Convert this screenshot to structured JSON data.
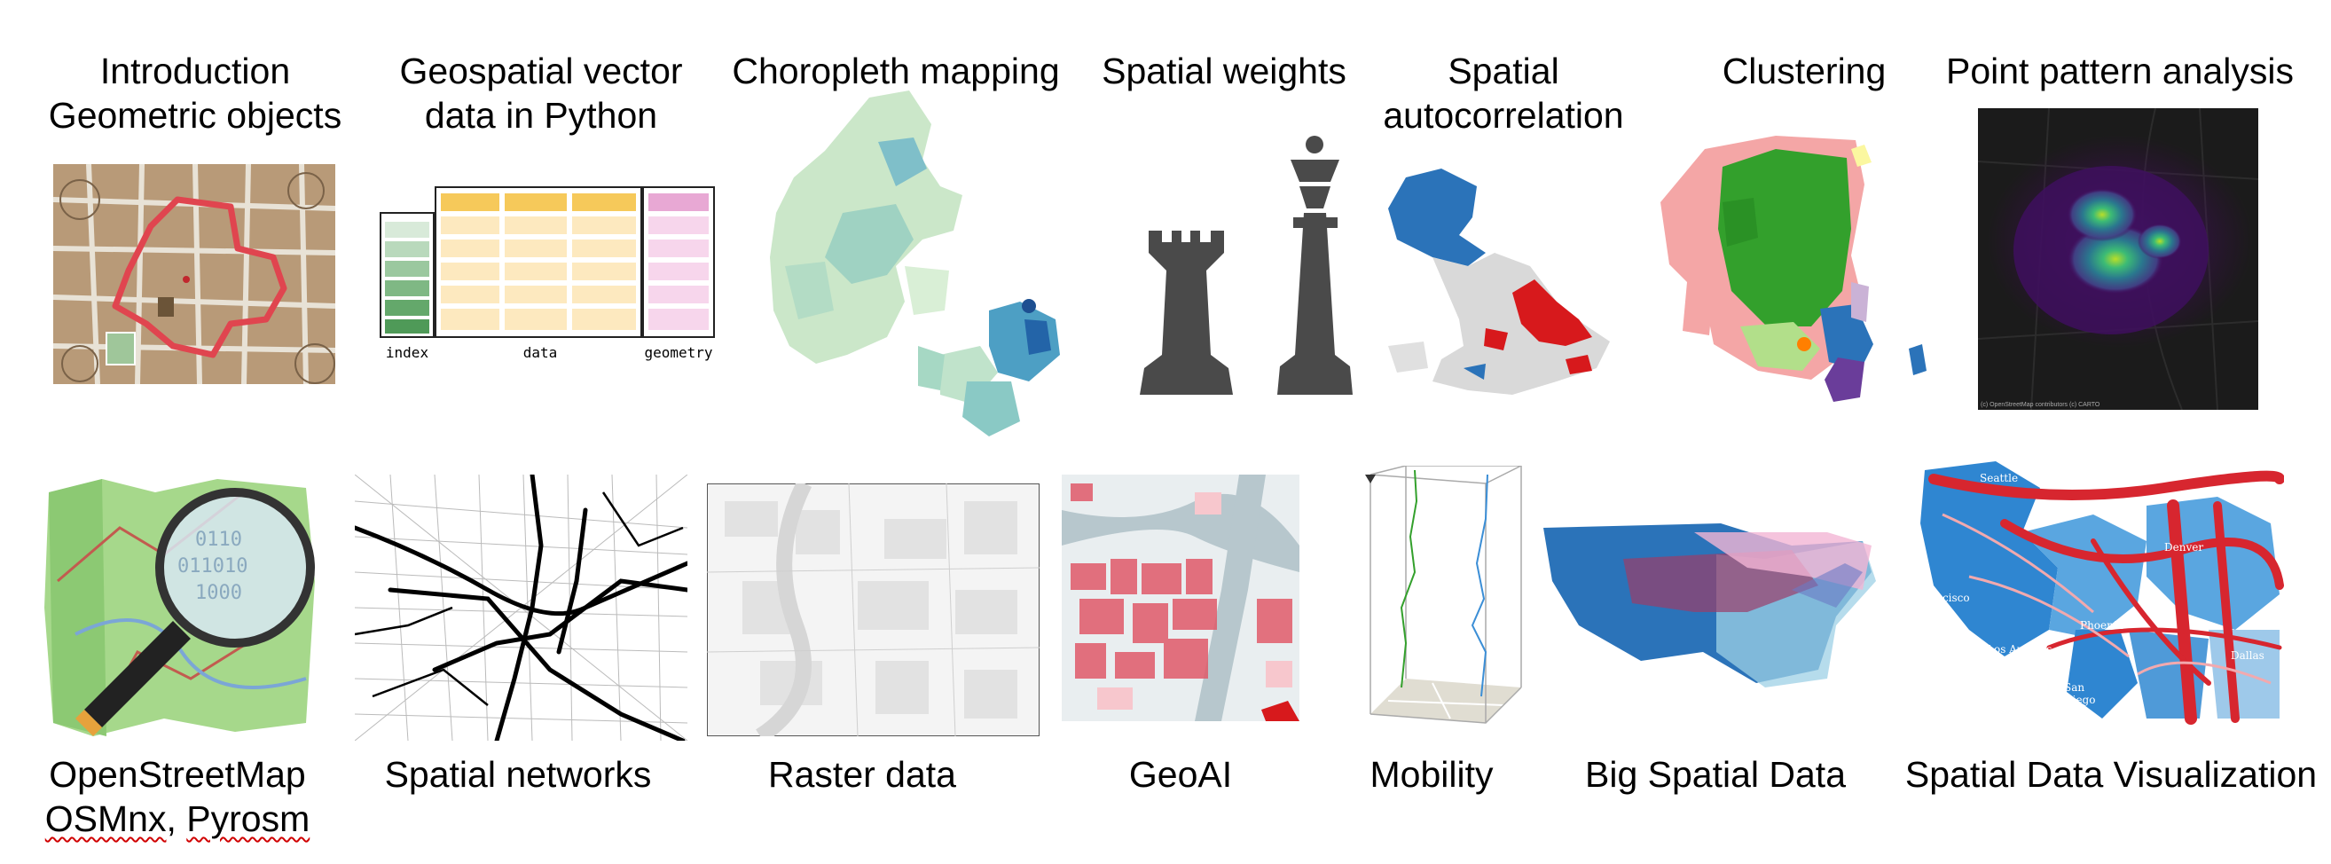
{
  "topics": {
    "intro": {
      "line1": "Introduction",
      "line2": "Geometric objects"
    },
    "vector": {
      "line1": "Geospatial vector",
      "line2": "data in Python"
    },
    "choropleth": {
      "line1": "Choropleth mapping"
    },
    "weights": {
      "line1": "Spatial weights"
    },
    "autocorr": {
      "line1": "Spatial",
      "line2": "autocorrelation"
    },
    "clustering": {
      "line1": "Clustering"
    },
    "points": {
      "line1": "Point pattern analysis"
    },
    "osm": {
      "line1": "OpenStreetMap",
      "line2a": "OSMnx",
      "line2b": ", ",
      "line2c": "Pyrosm"
    },
    "networks": {
      "line1": "Spatial networks"
    },
    "raster": {
      "line1": "Raster data"
    },
    "geoai": {
      "line1": "GeoAI"
    },
    "mobility": {
      "line1": "Mobility"
    },
    "bigdata": {
      "line1": "Big Spatial Data"
    },
    "viz": {
      "line1": "Spatial Data Visualization"
    }
  },
  "gdf_labels": {
    "index": "index",
    "data": "data",
    "geometry": "geometry"
  },
  "point_map_credit": "(c) OpenStreetMap contributors (c) CARTO",
  "viz_cities": {
    "seattle": "Seattle",
    "sf": "Francisco",
    "la": "Los Angeles",
    "sd": "San Diego",
    "phoenix": "Phoenix",
    "denver": "Denver",
    "dallas": "Dallas"
  },
  "colors": {
    "red_path": "#e0454f",
    "gdf_yellow": "#f6c95a",
    "gdf_pink": "#e8a8d4",
    "gdf_green": "#5aa46a",
    "chess": "#4a4a4a",
    "blue": "#2b73b9",
    "red": "#d7191c",
    "green": "#33a02c"
  }
}
